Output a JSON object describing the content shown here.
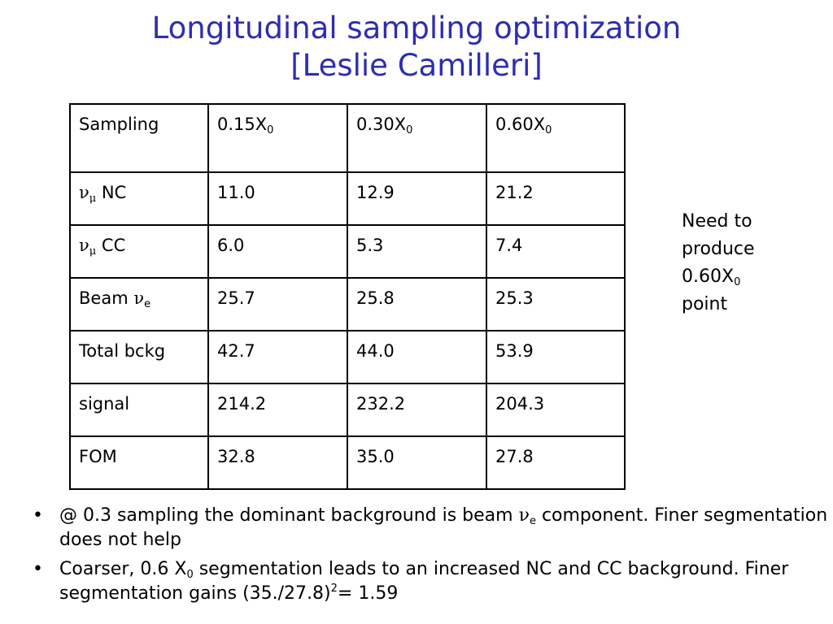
{
  "title": {
    "line1": "Longitudinal sampling optimization",
    "line2": "[Leslie Camilleri]"
  },
  "table": {
    "header": {
      "label": "Sampling",
      "cols": [
        {
          "main": "0.15X",
          "sub": "0"
        },
        {
          "main": "0.30X",
          "sub": "0"
        },
        {
          "main": "0.60X",
          "sub": "0"
        }
      ]
    },
    "rows": [
      {
        "greek": "ν",
        "greek_sub": "μ",
        "suffix": " NC",
        "values": [
          "11.0",
          "12.9",
          "21.2"
        ]
      },
      {
        "greek": "ν",
        "greek_sub": "μ",
        "suffix": " CC",
        "values": [
          "6.0",
          "5.3",
          "7.4"
        ]
      },
      {
        "prefix": "Beam ",
        "greek": "ν",
        "greek_sub": "e",
        "values": [
          "25.7",
          "25.8",
          "25.3"
        ]
      },
      {
        "label": "Total bckg",
        "values": [
          "42.7",
          "44.0",
          "53.9"
        ]
      },
      {
        "label": "signal",
        "values": [
          "214.2",
          "232.2",
          "204.3"
        ]
      },
      {
        "label": "FOM",
        "values": [
          "32.8",
          "35.0",
          "27.8"
        ]
      }
    ]
  },
  "note": {
    "l1": "Need to",
    "l2": "produce",
    "l3_main": "0.60X",
    "l3_sub": "0",
    "l4": "point"
  },
  "bullets": {
    "b1_a": "@ 0.3 sampling the dominant background is beam ",
    "b1_greek": "ν",
    "b1_sub": "e",
    "b1_b": " component. Finer segmentation does not help",
    "b2_a": "Coarser, 0.6  X",
    "b2_sub": "0",
    "b2_b": " segmentation leads to an increased NC and CC background. Finer segmentation gains (35./27.8)",
    "b2_sup": "2",
    "b2_c": "= 1.59"
  },
  "colors": {
    "title": "#2d2db3",
    "text": "#000000"
  }
}
